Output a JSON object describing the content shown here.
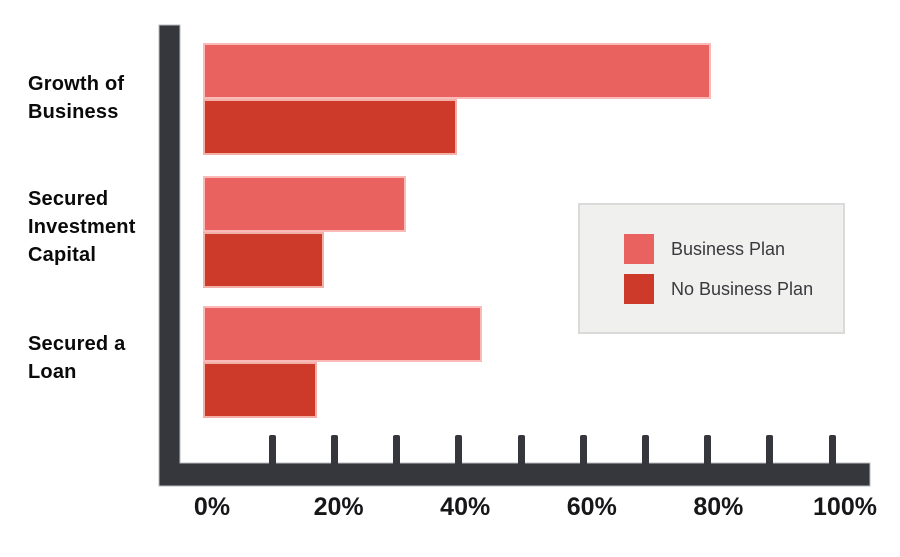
{
  "chart_data": {
    "type": "bar",
    "orientation": "horizontal",
    "title": "",
    "xlabel": "",
    "ylabel": "",
    "categories": [
      "Growth of Business",
      "Secured Investment Capital",
      "Secured a Loan"
    ],
    "category_label_lines": [
      [
        "Growth of",
        "Business"
      ],
      [
        "Secured",
        "Investment",
        "Capital"
      ],
      [
        "Secured a",
        "Loan"
      ]
    ],
    "series": [
      {
        "name": "Business Plan",
        "color": "#E96260",
        "values": [
          80,
          32,
          44
        ]
      },
      {
        "name": "No Business Plan",
        "color": "#CE3A29",
        "values": [
          40,
          19,
          18
        ]
      }
    ],
    "x_axis": {
      "range": [
        0,
        100
      ],
      "unit": "%",
      "tick_labels": [
        "0%",
        "20%",
        "40%",
        "60%",
        "80%",
        "100%"
      ],
      "tick_label_values": [
        0,
        20,
        40,
        60,
        80,
        100
      ],
      "minor_tick_values": [
        10,
        20,
        30,
        40,
        50,
        60,
        70,
        80,
        90,
        100
      ]
    },
    "grid": false,
    "legend": {
      "position": "center-right",
      "entries": [
        {
          "label": "Business Plan",
          "color": "#E96260"
        },
        {
          "label": "No Business Plan",
          "color": "#CE3A29"
        }
      ]
    },
    "colors": {
      "axis": "#35373D",
      "axis_outline": "#BABBC0",
      "bar_outline": "#F8D2CE",
      "category_text": "#0A0A0A",
      "axis_label_text": "#17171A",
      "legend_background": "#F0F0EF",
      "legend_border": "#DADADA",
      "legend_text": "#3A3A3E"
    }
  }
}
